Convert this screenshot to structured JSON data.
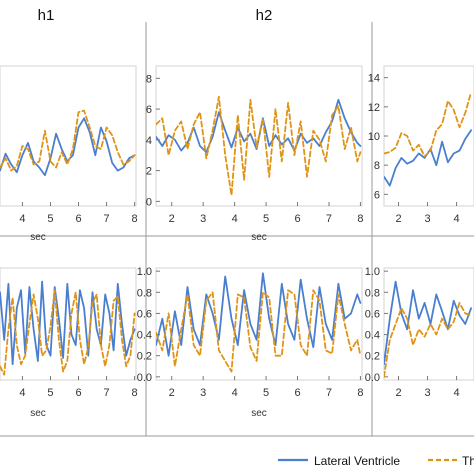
{
  "column_headers": [
    "h1",
    "h2"
  ],
  "legend": [
    {
      "label": "Lateral Ventricle",
      "color": "#4a7fd0",
      "dash": "solid"
    },
    {
      "label": "Th",
      "color": "#e09416",
      "dash": "dashed"
    }
  ],
  "colors": {
    "blue": "#4a7fd0",
    "orange": "#e09416",
    "grid": "#d3d3d3",
    "divider": "#9a9a9a"
  },
  "chart_data": [
    {
      "id": "r1c1",
      "type": "line",
      "xlabel": "",
      "ylabel": "",
      "xlim": [
        3.2,
        8.05
      ],
      "ylim": [
        -0.3,
        8.8
      ],
      "xticks": [
        "4",
        "5",
        "6",
        "7",
        "8"
      ],
      "yticks": [],
      "series": [
        {
          "name": "Lateral Ventricle",
          "x": [
            3.2,
            3.4,
            3.6,
            3.8,
            4.0,
            4.2,
            4.4,
            4.6,
            4.8,
            5.0,
            5.2,
            5.4,
            5.6,
            5.8,
            6.0,
            6.2,
            6.4,
            6.6,
            6.8,
            7.0,
            7.2,
            7.4,
            7.6,
            7.8,
            8.0
          ],
          "values": [
            2.0,
            3.1,
            2.4,
            1.9,
            3.0,
            3.8,
            2.6,
            2.2,
            1.7,
            2.8,
            4.4,
            3.4,
            2.6,
            3.0,
            4.8,
            5.4,
            4.5,
            3.0,
            4.8,
            3.9,
            2.5,
            2.0,
            2.2,
            2.8,
            3.0
          ]
        },
        {
          "name": "Th",
          "x": [
            3.2,
            3.4,
            3.6,
            3.8,
            4.0,
            4.2,
            4.4,
            4.6,
            4.8,
            5.0,
            5.2,
            5.4,
            5.6,
            5.8,
            6.0,
            6.2,
            6.4,
            6.6,
            6.8,
            7.0,
            7.2,
            7.4,
            7.6,
            7.8,
            8.0
          ],
          "values": [
            2.2,
            2.8,
            2.0,
            2.3,
            3.6,
            3.4,
            2.4,
            2.6,
            4.6,
            2.6,
            2.2,
            3.2,
            2.4,
            3.4,
            5.8,
            5.9,
            4.8,
            3.6,
            3.4,
            4.8,
            4.3,
            3.2,
            2.4,
            2.6,
            3.0
          ]
        }
      ]
    },
    {
      "id": "r1c2",
      "type": "line",
      "xlabel": "",
      "ylabel": "",
      "xlim": [
        1.5,
        8.05
      ],
      "ylim": [
        -0.3,
        8.8
      ],
      "xticks": [
        "2",
        "3",
        "4",
        "5",
        "6",
        "7",
        "8"
      ],
      "yticks": [
        "0",
        "2",
        "4",
        "6",
        "8"
      ],
      "series": [
        {
          "name": "Lateral Ventricle",
          "x": [
            1.5,
            1.7,
            1.9,
            2.1,
            2.3,
            2.5,
            2.7,
            2.9,
            3.1,
            3.3,
            3.5,
            3.7,
            3.9,
            4.1,
            4.3,
            4.5,
            4.7,
            4.9,
            5.1,
            5.3,
            5.5,
            5.7,
            5.9,
            6.1,
            6.3,
            6.5,
            6.7,
            6.9,
            7.1,
            7.3,
            7.5,
            7.7,
            7.9,
            8.0
          ],
          "values": [
            4.2,
            3.6,
            4.3,
            4.0,
            3.3,
            3.8,
            4.8,
            3.6,
            3.2,
            4.2,
            5.8,
            4.6,
            3.5,
            4.8,
            3.9,
            4.4,
            3.4,
            5.4,
            3.6,
            4.3,
            3.7,
            4.1,
            3.3,
            4.4,
            3.8,
            4.1,
            3.6,
            4.5,
            5.2,
            6.6,
            5.4,
            4.5,
            3.8,
            3.6
          ]
        },
        {
          "name": "Th",
          "x": [
            1.5,
            1.7,
            1.9,
            2.1,
            2.3,
            2.5,
            2.7,
            2.9,
            3.1,
            3.3,
            3.5,
            3.7,
            3.9,
            4.1,
            4.3,
            4.5,
            4.7,
            4.9,
            5.1,
            5.3,
            5.5,
            5.7,
            5.9,
            6.1,
            6.3,
            6.5,
            6.7,
            6.9,
            7.1,
            7.3,
            7.5,
            7.7,
            7.9,
            8.0
          ],
          "values": [
            5.0,
            5.4,
            3.0,
            4.6,
            5.2,
            3.4,
            5.0,
            5.8,
            2.8,
            4.6,
            6.8,
            3.0,
            0.4,
            5.6,
            1.4,
            6.6,
            3.5,
            5.4,
            1.6,
            6.0,
            2.6,
            6.4,
            3.0,
            5.2,
            1.6,
            4.6,
            4.0,
            2.6,
            5.6,
            6.2,
            3.4,
            4.8,
            2.6,
            3.2
          ]
        }
      ]
    },
    {
      "id": "r1c3",
      "type": "line",
      "xlabel": "",
      "ylabel": "",
      "xlim": [
        1.5,
        4.6
      ],
      "ylim": [
        5.2,
        14.8
      ],
      "xticks": [
        "2",
        "3",
        "4"
      ],
      "yticks": [
        "6",
        "8",
        "10",
        "12",
        "14"
      ],
      "series": [
        {
          "name": "Lateral Ventricle",
          "x": [
            1.5,
            1.7,
            1.9,
            2.1,
            2.3,
            2.5,
            2.7,
            2.9,
            3.1,
            3.3,
            3.5,
            3.7,
            3.9,
            4.1,
            4.3,
            4.5
          ],
          "values": [
            7.2,
            6.6,
            7.8,
            8.5,
            8.1,
            8.3,
            8.8,
            8.5,
            9.1,
            8.0,
            9.6,
            8.2,
            8.8,
            9.0,
            9.8,
            10.4
          ]
        },
        {
          "name": "Th",
          "x": [
            1.5,
            1.7,
            1.9,
            2.1,
            2.3,
            2.5,
            2.7,
            2.9,
            3.1,
            3.3,
            3.5,
            3.7,
            3.9,
            4.1,
            4.3,
            4.5
          ],
          "values": [
            8.8,
            8.9,
            9.2,
            10.2,
            10.0,
            9.0,
            9.4,
            8.6,
            9.0,
            10.4,
            10.8,
            12.4,
            11.8,
            10.6,
            11.6,
            13.0
          ]
        }
      ]
    },
    {
      "id": "r2c1",
      "type": "line",
      "xlabel": "",
      "ylabel": "",
      "xlim": [
        3.2,
        8.05
      ],
      "ylim": [
        -0.03,
        1.03
      ],
      "xticks": [
        "4",
        "5",
        "6",
        "7",
        "8"
      ],
      "yticks": [],
      "series": [
        {
          "name": "Lateral Ventricle",
          "x": [
            3.2,
            3.35,
            3.5,
            3.65,
            3.8,
            3.95,
            4.1,
            4.25,
            4.4,
            4.55,
            4.7,
            4.85,
            5.0,
            5.15,
            5.3,
            5.45,
            5.6,
            5.75,
            5.9,
            6.05,
            6.2,
            6.35,
            6.5,
            6.65,
            6.8,
            6.95,
            7.1,
            7.25,
            7.4,
            7.55,
            7.7,
            7.85,
            8.0
          ],
          "values": [
            0.8,
            0.35,
            0.88,
            0.12,
            0.65,
            0.82,
            0.22,
            0.85,
            0.45,
            0.15,
            0.9,
            0.3,
            0.2,
            0.85,
            0.55,
            0.18,
            0.88,
            0.4,
            0.3,
            0.82,
            0.65,
            0.2,
            0.8,
            0.45,
            0.3,
            0.78,
            0.6,
            0.25,
            0.88,
            0.5,
            0.2,
            0.35,
            0.45
          ]
        },
        {
          "name": "Th",
          "x": [
            3.2,
            3.35,
            3.5,
            3.65,
            3.8,
            3.95,
            4.1,
            4.25,
            4.4,
            4.55,
            4.7,
            4.85,
            5.0,
            5.15,
            5.3,
            5.45,
            5.6,
            5.75,
            5.9,
            6.05,
            6.2,
            6.35,
            6.5,
            6.65,
            6.8,
            6.95,
            7.1,
            7.25,
            7.4,
            7.55,
            7.7,
            7.85,
            8.0
          ],
          "values": [
            0.1,
            0.02,
            0.45,
            0.75,
            0.3,
            0.12,
            0.2,
            0.5,
            0.78,
            0.55,
            0.2,
            0.25,
            0.48,
            0.82,
            0.35,
            0.05,
            0.15,
            0.6,
            0.8,
            0.35,
            0.12,
            0.28,
            0.7,
            0.78,
            0.3,
            0.1,
            0.3,
            0.72,
            0.76,
            0.35,
            0.1,
            0.2,
            0.6
          ]
        }
      ]
    },
    {
      "id": "r2c2",
      "type": "line",
      "xlabel": "",
      "ylabel": "",
      "xlim": [
        1.5,
        8.05
      ],
      "ylim": [
        -0.03,
        1.03
      ],
      "xticks": [
        "2",
        "3",
        "4",
        "5",
        "6",
        "7",
        "8"
      ],
      "yticks": [
        "0.0",
        "0.2",
        "0.4",
        "0.6",
        "0.8",
        "1.0"
      ],
      "series": [
        {
          "name": "Lateral Ventricle",
          "x": [
            1.5,
            1.7,
            1.9,
            2.1,
            2.3,
            2.5,
            2.7,
            2.9,
            3.1,
            3.3,
            3.5,
            3.7,
            3.9,
            4.1,
            4.3,
            4.5,
            4.7,
            4.9,
            5.1,
            5.3,
            5.5,
            5.7,
            5.9,
            6.1,
            6.3,
            6.5,
            6.7,
            6.9,
            7.1,
            7.3,
            7.5,
            7.7,
            7.9,
            8.0
          ],
          "values": [
            0.3,
            0.55,
            0.2,
            0.62,
            0.3,
            0.85,
            0.45,
            0.3,
            0.78,
            0.6,
            0.35,
            0.95,
            0.55,
            0.3,
            0.82,
            0.5,
            0.35,
            0.98,
            0.55,
            0.3,
            0.88,
            0.5,
            0.35,
            0.92,
            0.55,
            0.28,
            0.85,
            0.5,
            0.35,
            0.88,
            0.55,
            0.6,
            0.78,
            0.7
          ]
        },
        {
          "name": "Th",
          "x": [
            1.5,
            1.7,
            1.9,
            2.1,
            2.3,
            2.5,
            2.7,
            2.9,
            3.1,
            3.3,
            3.5,
            3.7,
            3.9,
            4.1,
            4.3,
            4.5,
            4.7,
            4.9,
            5.1,
            5.3,
            5.5,
            5.7,
            5.9,
            6.1,
            6.3,
            6.5,
            6.7,
            6.9,
            7.1,
            7.3,
            7.5,
            7.7,
            7.9,
            8.0
          ],
          "values": [
            0.42,
            0.25,
            0.6,
            0.1,
            0.45,
            0.78,
            0.3,
            0.2,
            0.72,
            0.8,
            0.25,
            0.15,
            0.05,
            0.78,
            0.75,
            0.28,
            0.15,
            0.8,
            0.75,
            0.2,
            0.2,
            0.82,
            0.78,
            0.3,
            0.2,
            0.82,
            0.72,
            0.25,
            0.22,
            0.78,
            0.5,
            0.25,
            0.35,
            0.2
          ]
        }
      ]
    },
    {
      "id": "r2c3",
      "type": "line",
      "xlabel": "",
      "ylabel": "",
      "xlim": [
        1.5,
        4.6
      ],
      "ylim": [
        -0.03,
        1.03
      ],
      "xticks": [
        "2",
        "3",
        "4"
      ],
      "yticks": [
        "0.0",
        "0.2",
        "0.4",
        "0.6",
        "0.8",
        "1.0"
      ],
      "series": [
        {
          "name": "Lateral Ventricle",
          "x": [
            1.5,
            1.7,
            1.9,
            2.1,
            2.3,
            2.5,
            2.7,
            2.9,
            3.1,
            3.3,
            3.5,
            3.7,
            3.9,
            4.1,
            4.3,
            4.5
          ],
          "values": [
            0.12,
            0.55,
            0.9,
            0.6,
            0.45,
            0.82,
            0.55,
            0.7,
            0.5,
            0.78,
            0.62,
            0.45,
            0.72,
            0.58,
            0.5,
            0.65
          ]
        },
        {
          "name": "Th",
          "x": [
            1.5,
            1.7,
            1.9,
            2.1,
            2.3,
            2.5,
            2.7,
            2.9,
            3.1,
            3.3,
            3.5,
            3.7,
            3.9,
            4.1,
            4.3,
            4.5
          ],
          "values": [
            0.0,
            0.35,
            0.5,
            0.65,
            0.55,
            0.3,
            0.45,
            0.38,
            0.5,
            0.4,
            0.55,
            0.45,
            0.52,
            0.7,
            0.6,
            0.58
          ]
        }
      ]
    }
  ]
}
